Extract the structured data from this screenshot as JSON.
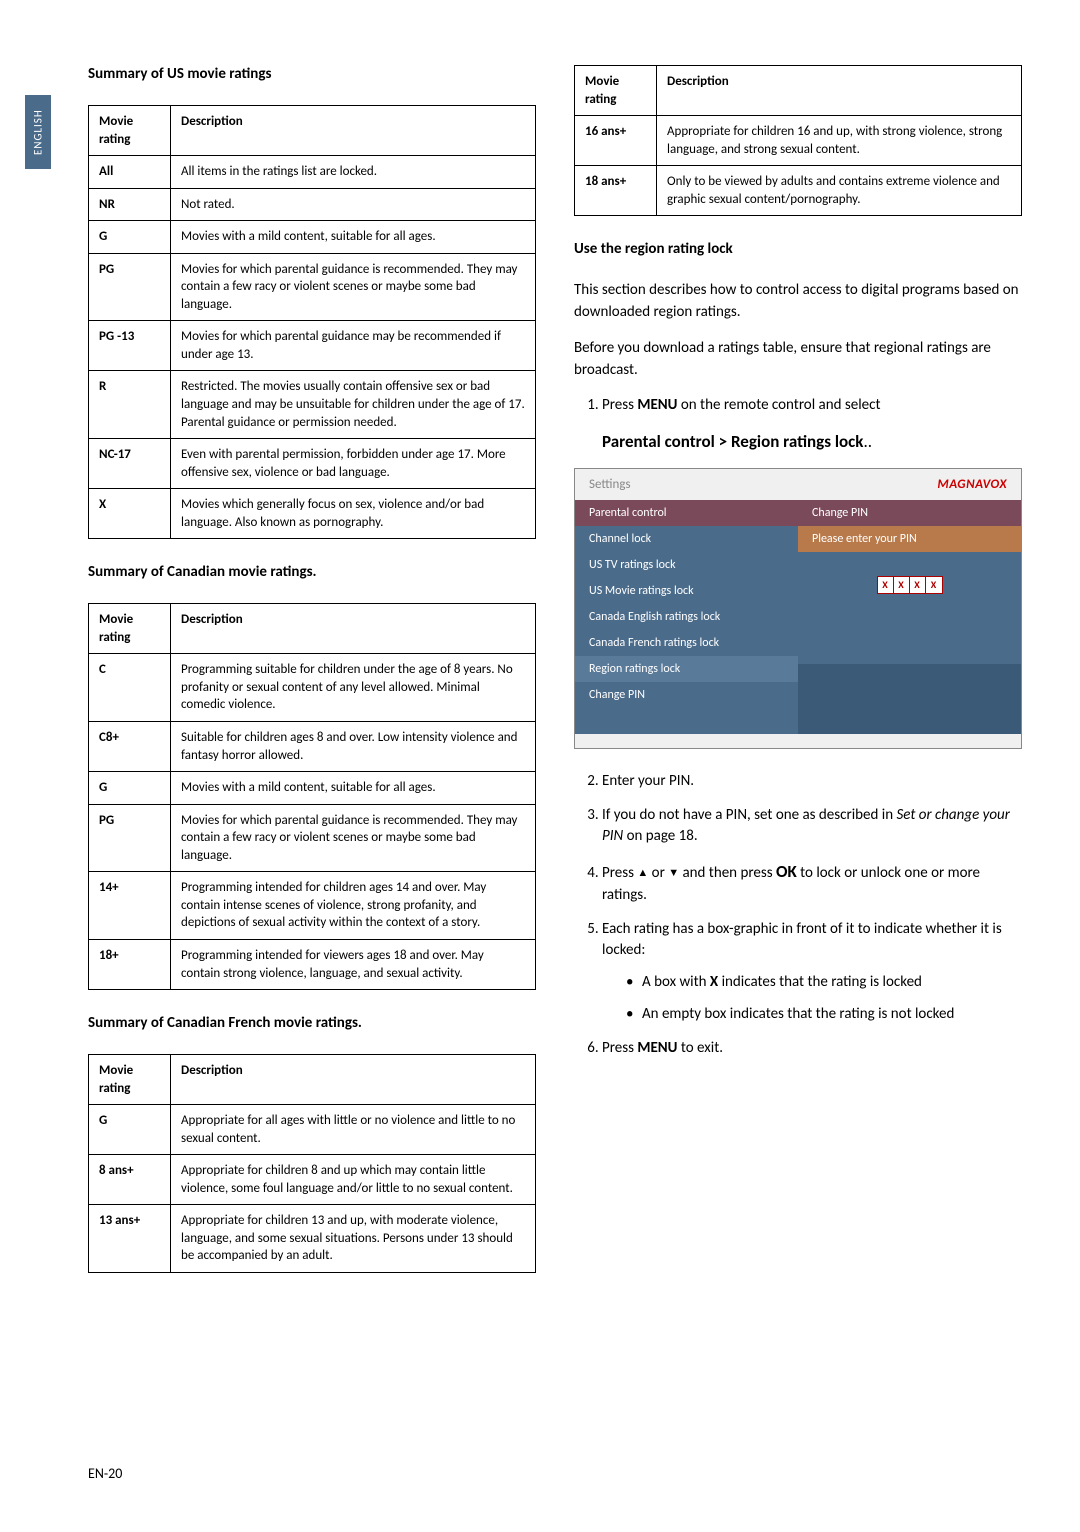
{
  "language_tab": "ENGLISH",
  "page_number": "EN-20",
  "left_column": {
    "us_title": "Summary of US movie ratings",
    "ca_title": "Summary of Canadian movie ratings.",
    "ca_fr_title": "Summary of Canadian French movie ratings.",
    "header_rating": "Movie rating",
    "header_desc": "Description",
    "us_rows": [
      {
        "r": "All",
        "d": "All items in the ratings list are locked."
      },
      {
        "r": "NR",
        "d": "Not rated."
      },
      {
        "r": "G",
        "d": "Movies with a mild content, suitable for all ages."
      },
      {
        "r": "PG",
        "d": "Movies for which parental guidance is recommended.  They may contain a few racy or violent scenes or maybe some bad language."
      },
      {
        "r": "PG -13",
        "d": "Movies for which parental guidance may be recommended if under age 13."
      },
      {
        "r": "R",
        "d": "Restricted.  The movies usually contain offensive sex or bad language and may be unsuitable for children under the age of 17.  Parental guidance or permission needed."
      },
      {
        "r": "NC-17",
        "d": "Even with parental permission, forbidden under age 17.  More offensive sex, violence or bad language."
      },
      {
        "r": "X",
        "d": "Movies which generally focus on sex, violence and/or bad language.  Also known as pornography."
      }
    ],
    "ca_rows": [
      {
        "r": "C",
        "d": "Programming suitable for children under the age of 8 years.  No profanity or sexual content of any level allowed.  Minimal comedic violence."
      },
      {
        "r": "C8+",
        "d": "Suitable for children ages 8 and over.  Low intensity violence and fantasy horror allowed."
      },
      {
        "r": "G",
        "d": "Movies with a mild content, suitable for all ages."
      },
      {
        "r": "PG",
        "d": "Movies for which parental guidance is recommended.  They may contain a few racy or violent scenes or maybe some bad language."
      },
      {
        "r": "14+",
        "d": "Programming intended for children ages 14 and over.  May contain intense scenes of violence, strong profanity, and depictions of sexual activity within the context of a story."
      },
      {
        "r": "18+",
        "d": "Programming intended for viewers ages 18 and over.  May contain strong violence, language, and sexual activity."
      }
    ],
    "ca_fr_rows": [
      {
        "r": "G",
        "d": "Appropriate for all ages with little or no violence and little to no sexual content."
      },
      {
        "r": "8 ans+",
        "d": "Appropriate for children 8 and up which may contain little violence, some foul language and/or little to no sexual content."
      },
      {
        "r": "13 ans+",
        "d": "Appropriate for children 13 and up, with moderate violence, language, and some sexual situations.  Persons under 13 should be accompanied by an adult."
      }
    ]
  },
  "right_column": {
    "header_rating": "Movie rating",
    "header_desc": "Description",
    "top_rows": [
      {
        "r": "16 ans+",
        "d": "Appropriate for children 16 and up, with strong violence, strong language, and strong sexual content."
      },
      {
        "r": "18 ans+",
        "d": "Only to be viewed by adults and contains extreme violence and graphic sexual content/pornography."
      }
    ],
    "region_title": "Use the region rating lock",
    "p1": "This section describes how to control access to digital programs based on downloaded region ratings.",
    "p2": "Before you download a ratings table, ensure that regional ratings are broadcast.",
    "step1_pre": "Press ",
    "step1_menu": "MENU",
    "step1_post": " on the remote control and select",
    "breadcrumb": "Parental control > Region ratings lock",
    "breadcrumb_suffix": "..",
    "tv_ui": {
      "settings_label": "Settings",
      "brand": "MAGNAVOX",
      "left_items": [
        "Parental control",
        "Channel lock",
        "US TV ratings lock",
        "US Movie ratings lock",
        "Canada English ratings lock",
        "Canada French ratings lock",
        "Region ratings lock",
        "Change PIN"
      ],
      "right_head": "Change PIN",
      "right_sub": "Please enter your PIN",
      "pin_chars": [
        "X",
        "X",
        "X",
        "X"
      ]
    },
    "step2": "Enter your PIN.",
    "step3_pre": "If you do not have a PIN, set one as described in ",
    "step3_italic": "Set or change your PIN",
    "step3_post": " on page 18.",
    "step4_pre1": "Press ",
    "step4_pre2": " or ",
    "step4_pre3": " and then press ",
    "step4_ok": "OK",
    "step4_post": " to lock or unlock one or more ratings.",
    "step5": "Each rating has a box-graphic in front of it to indicate whether it is locked:",
    "bullet1_pre": "A box with ",
    "bullet1_x": "X",
    "bullet1_post": " indicates that the rating is locked",
    "bullet2": "An empty box indicates that the rating is not locked",
    "step6_pre": "Press ",
    "step6_menu": "MENU",
    "step6_post": " to exit."
  }
}
